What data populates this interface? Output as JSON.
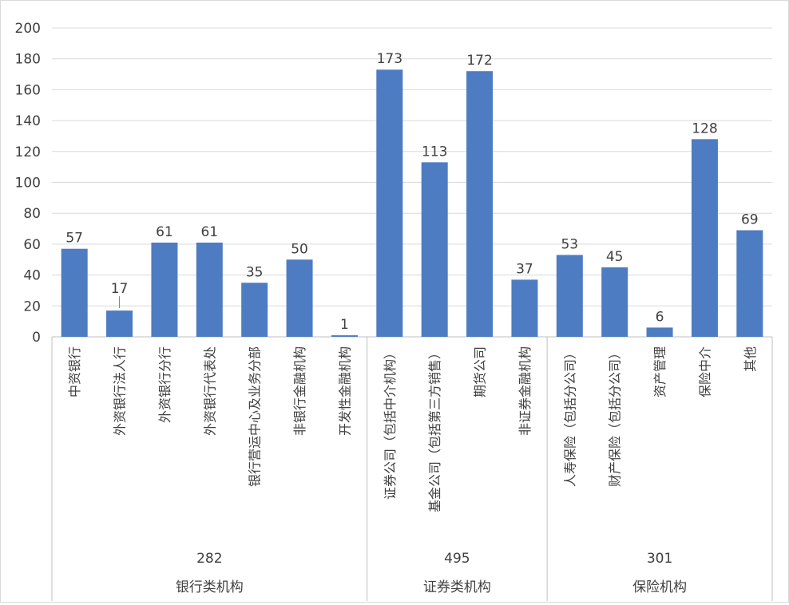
{
  "chart_data": {
    "type": "bar",
    "title": "",
    "xlabel": "",
    "ylabel": "",
    "ylim": [
      0,
      200
    ],
    "yticks": [
      0,
      20,
      40,
      60,
      80,
      100,
      120,
      140,
      160,
      180,
      200
    ],
    "grid": true,
    "legend": "none",
    "bar_color": "#4E7CC2",
    "categories": [
      "中资银行",
      "外资银行法人行",
      "外资银行分行",
      "外资银行代表处",
      "银行营运中心及业务分部",
      "非银行金融机构",
      "开发性金融机构",
      "证券公司（包括中介机构）",
      "基金公司（包括第三方销售）",
      "期货公司",
      "非证券金融机构",
      "人寿保险（包括分公司）",
      "财产保险（包括分公司）",
      "资产管理",
      "保险中介",
      "其他"
    ],
    "values": [
      57,
      17,
      61,
      61,
      35,
      50,
      1,
      173,
      113,
      172,
      37,
      53,
      45,
      6,
      128,
      69
    ],
    "groups": [
      {
        "name": "银行类机构",
        "total": "282",
        "count": 7
      },
      {
        "name": "证券类机构",
        "total": "495",
        "count": 4
      },
      {
        "name": "保险机构",
        "total": "301",
        "count": 5
      }
    ]
  }
}
